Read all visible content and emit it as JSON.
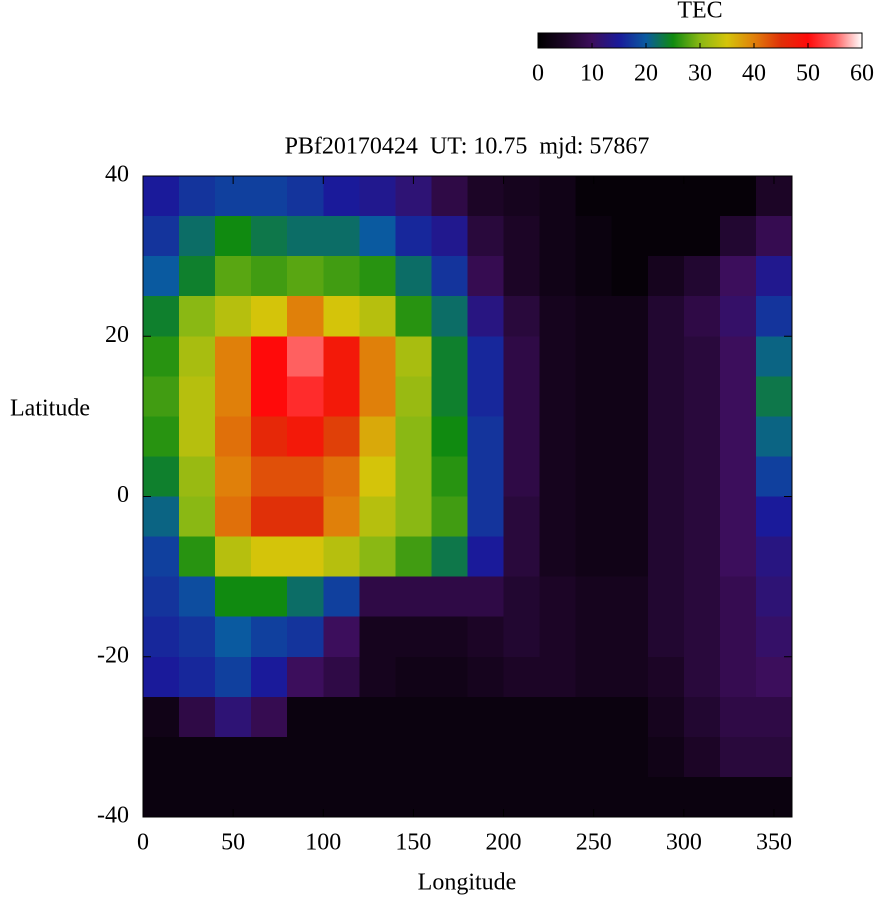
{
  "chart_data": {
    "type": "heatmap",
    "title": "PBf20170424  UT: 10.75  mjd: 57867",
    "x_label": "Longitude",
    "y_label": "Latitude",
    "colorbar_label": "TEC",
    "x_bins": [
      0,
      20,
      40,
      60,
      80,
      100,
      120,
      140,
      160,
      180,
      200,
      220,
      240,
      260,
      280,
      300,
      320,
      340,
      360
    ],
    "y_bins": [
      40,
      35,
      30,
      25,
      20,
      15,
      10,
      5,
      0,
      -5,
      -10,
      -15,
      -20,
      -25,
      -30,
      -35,
      -40
    ],
    "values": [
      [
        15,
        17,
        18,
        18,
        17,
        15,
        14,
        12,
        8,
        5,
        4,
        3,
        1,
        1,
        1,
        1,
        1,
        5
      ],
      [
        17,
        22,
        25,
        23,
        22,
        22,
        20,
        16,
        14,
        7,
        5,
        3,
        2,
        1,
        1,
        1,
        6,
        9
      ],
      [
        20,
        24,
        28,
        27,
        28,
        27,
        26,
        22,
        17,
        9,
        5,
        3,
        2,
        1,
        4,
        6,
        10,
        14
      ],
      [
        24,
        30,
        33,
        35,
        40,
        35,
        33,
        26,
        22,
        13,
        7,
        4,
        3,
        3,
        6,
        8,
        11,
        17
      ],
      [
        26,
        32,
        40,
        50,
        55,
        48,
        40,
        32,
        24,
        16,
        8,
        4,
        3,
        3,
        6,
        7,
        10,
        21
      ],
      [
        27,
        33,
        40,
        50,
        52,
        48,
        40,
        31,
        24,
        16,
        8,
        4,
        3,
        3,
        6,
        7,
        10,
        23
      ],
      [
        26,
        33,
        41,
        46,
        48,
        44,
        37,
        30,
        25,
        17,
        8,
        4,
        3,
        3,
        6,
        7,
        10,
        21
      ],
      [
        24,
        31,
        40,
        43,
        43,
        41,
        35,
        30,
        26,
        17,
        8,
        4,
        3,
        3,
        6,
        7,
        10,
        18
      ],
      [
        21,
        30,
        41,
        45,
        45,
        40,
        33,
        30,
        27,
        17,
        7,
        4,
        3,
        3,
        6,
        7,
        10,
        15
      ],
      [
        18,
        26,
        33,
        35,
        35,
        33,
        30,
        27,
        23,
        15,
        7,
        4,
        3,
        3,
        6,
        7,
        10,
        13
      ],
      [
        17,
        19,
        25,
        25,
        22,
        18,
        8,
        8,
        8,
        8,
        6,
        5,
        4,
        4,
        6,
        7,
        9,
        12
      ],
      [
        16,
        17,
        20,
        18,
        17,
        10,
        4,
        4,
        4,
        5,
        6,
        5,
        4,
        4,
        6,
        7,
        9,
        11
      ],
      [
        15,
        16,
        18,
        15,
        10,
        8,
        4,
        3,
        3,
        4,
        5,
        5,
        4,
        4,
        5,
        7,
        9,
        10
      ],
      [
        3,
        8,
        12,
        9,
        2,
        2,
        2,
        2,
        2,
        2,
        2,
        2,
        2,
        2,
        4,
        6,
        8,
        8
      ],
      [
        2,
        2,
        2,
        2,
        2,
        2,
        2,
        2,
        2,
        2,
        2,
        2,
        2,
        2,
        3,
        5,
        7,
        7
      ],
      [
        2,
        2,
        2,
        2,
        2,
        2,
        2,
        2,
        2,
        2,
        2,
        2,
        2,
        2,
        2,
        2,
        2,
        2
      ]
    ],
    "xlim": [
      0,
      360
    ],
    "xticks": [
      0,
      50,
      100,
      150,
      200,
      250,
      300,
      350
    ],
    "ylim": [
      -40,
      40
    ],
    "yticks": [
      -40,
      -20,
      0,
      20,
      40
    ],
    "clim": [
      0,
      60
    ],
    "cticks": [
      0,
      10,
      20,
      30,
      40,
      50,
      60
    ],
    "colorscale": [
      "#000000",
      "#1c0526",
      "#3c0e5c",
      "#1a1a9a",
      "#0a5aa0",
      "#108a10",
      "#8ab814",
      "#d4c40a",
      "#e0800a",
      "#e03008",
      "#ff0a0a",
      "#ff6060",
      "#ffffff"
    ]
  }
}
